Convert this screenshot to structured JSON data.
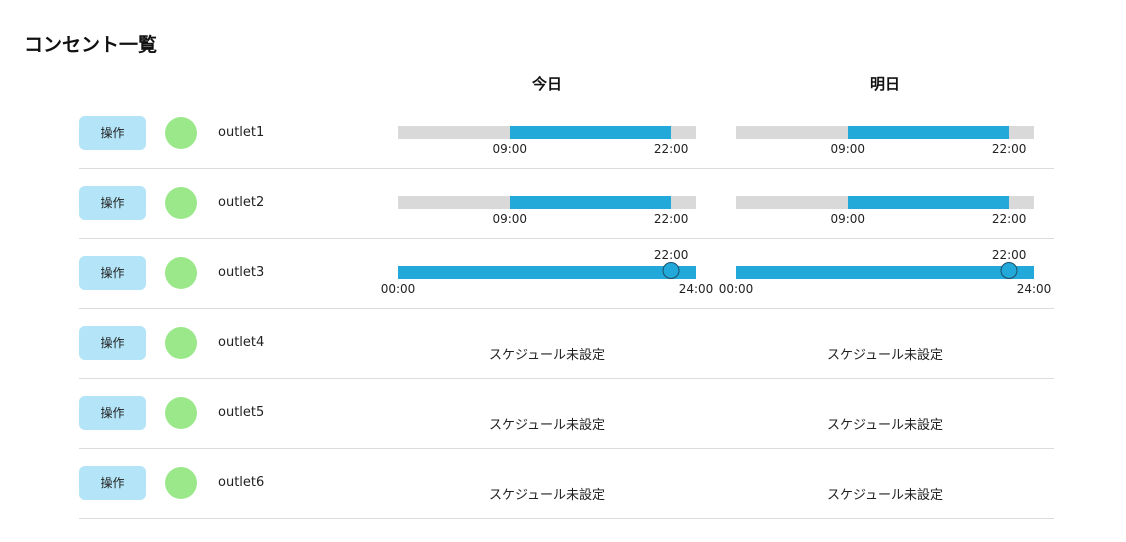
{
  "page": {
    "title": "コンセント一覧"
  },
  "columns": {
    "today": "今日",
    "tomorrow": "明日"
  },
  "operate_label": "操作",
  "status_color": "#9be88a",
  "schedule_color": "#22a8d9",
  "track_color": "#d9d9d9",
  "unset_label": "スケジュール未設定",
  "outlets": [
    {
      "name": "outlet1",
      "today": {
        "mode": "range",
        "start": "09:00",
        "end": "22:00"
      },
      "tomorrow": {
        "mode": "range",
        "start": "09:00",
        "end": "22:00"
      }
    },
    {
      "name": "outlet2",
      "today": {
        "mode": "range",
        "start": "09:00",
        "end": "22:00"
      },
      "tomorrow": {
        "mode": "range",
        "start": "09:00",
        "end": "22:00"
      }
    },
    {
      "name": "outlet3",
      "today": {
        "mode": "point",
        "start": "00:00",
        "end": "24:00",
        "point": "22:00"
      },
      "tomorrow": {
        "mode": "point",
        "start": "00:00",
        "end": "24:00",
        "point": "22:00"
      }
    },
    {
      "name": "outlet4",
      "today": {
        "mode": "none"
      },
      "tomorrow": {
        "mode": "none"
      }
    },
    {
      "name": "outlet5",
      "today": {
        "mode": "none"
      },
      "tomorrow": {
        "mode": "none"
      }
    },
    {
      "name": "outlet6",
      "today": {
        "mode": "none"
      },
      "tomorrow": {
        "mode": "none"
      }
    }
  ]
}
